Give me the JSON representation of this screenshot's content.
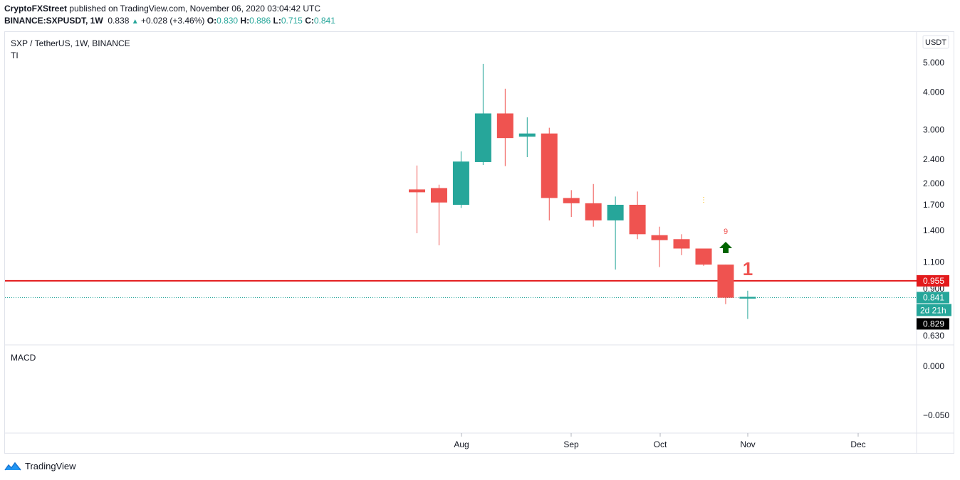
{
  "header": {
    "publisher": "CryptoFXStreet",
    "published_text": "published on TradingView.com, November 06, 2020 03:04:42 UTC",
    "symbol": "BINANCE:SXPUSDT, 1W",
    "last": "0.838",
    "change": "+0.028 (+3.46%)",
    "o_label": "O:",
    "o": "0.830",
    "h_label": "H:",
    "h": "0.886",
    "l_label": "L:",
    "l": "0.715",
    "c_label": "C:",
    "c": "0.841"
  },
  "pane": {
    "title": "SXP / TetherUS, 1W, BINANCE",
    "indicator": "TI",
    "currency": "USDT"
  },
  "macd": {
    "label": "MACD",
    "ticks": [
      "0.000",
      "−0.050"
    ]
  },
  "colors": {
    "up": "#26a69a",
    "down": "#ef5350",
    "level": "#e31a1c",
    "signal_up": "#006400",
    "marker": "#f7b500",
    "text": "#131722"
  },
  "chart_data": {
    "type": "candlestick",
    "timeframe": "1W",
    "y_scale": "log",
    "ylim": [
      0.6,
      5.4
    ],
    "y_ticks": [
      "5.000",
      "4.000",
      "3.000",
      "2.400",
      "2.000",
      "1.700",
      "1.400",
      "1.100",
      "0.900",
      "0.630"
    ],
    "x_ticks": [
      "Aug",
      "Sep",
      "Oct",
      "Nov",
      "Dec"
    ],
    "candles": [
      {
        "o": 1.91,
        "h": 2.29,
        "l": 1.37,
        "c": 1.87
      },
      {
        "o": 1.93,
        "h": 1.98,
        "l": 1.25,
        "c": 1.73
      },
      {
        "o": 1.7,
        "h": 2.55,
        "l": 1.66,
        "c": 2.36
      },
      {
        "o": 2.35,
        "h": 4.95,
        "l": 2.3,
        "c": 3.4
      },
      {
        "o": 3.4,
        "h": 4.1,
        "l": 2.28,
        "c": 2.82
      },
      {
        "o": 2.85,
        "h": 3.3,
        "l": 2.44,
        "c": 2.92
      },
      {
        "o": 2.92,
        "h": 3.05,
        "l": 1.51,
        "c": 1.79
      },
      {
        "o": 1.79,
        "h": 1.9,
        "l": 1.55,
        "c": 1.72
      },
      {
        "o": 1.72,
        "h": 1.99,
        "l": 1.44,
        "c": 1.51
      },
      {
        "o": 1.51,
        "h": 1.81,
        "l": 1.04,
        "c": 1.7
      },
      {
        "o": 1.7,
        "h": 1.88,
        "l": 1.31,
        "c": 1.36
      },
      {
        "o": 1.35,
        "h": 1.44,
        "l": 1.06,
        "c": 1.3
      },
      {
        "o": 1.31,
        "h": 1.36,
        "l": 1.16,
        "c": 1.22
      },
      {
        "o": 1.22,
        "h": 1.22,
        "l": 1.07,
        "c": 1.08
      },
      {
        "o": 1.08,
        "h": 1.08,
        "l": 0.8,
        "c": 0.84
      },
      {
        "o": 0.83,
        "h": 0.886,
        "l": 0.715,
        "c": 0.841
      }
    ],
    "levels": [
      {
        "value": 0.955,
        "label": "0.955"
      }
    ],
    "last_price": {
      "value": 0.841,
      "label": "0.841",
      "countdown": "2d 21h"
    },
    "crosshair_price": {
      "value": 0.829,
      "label": "0.829"
    },
    "annotations": {
      "td_count": "9",
      "big_number": "1"
    }
  }
}
